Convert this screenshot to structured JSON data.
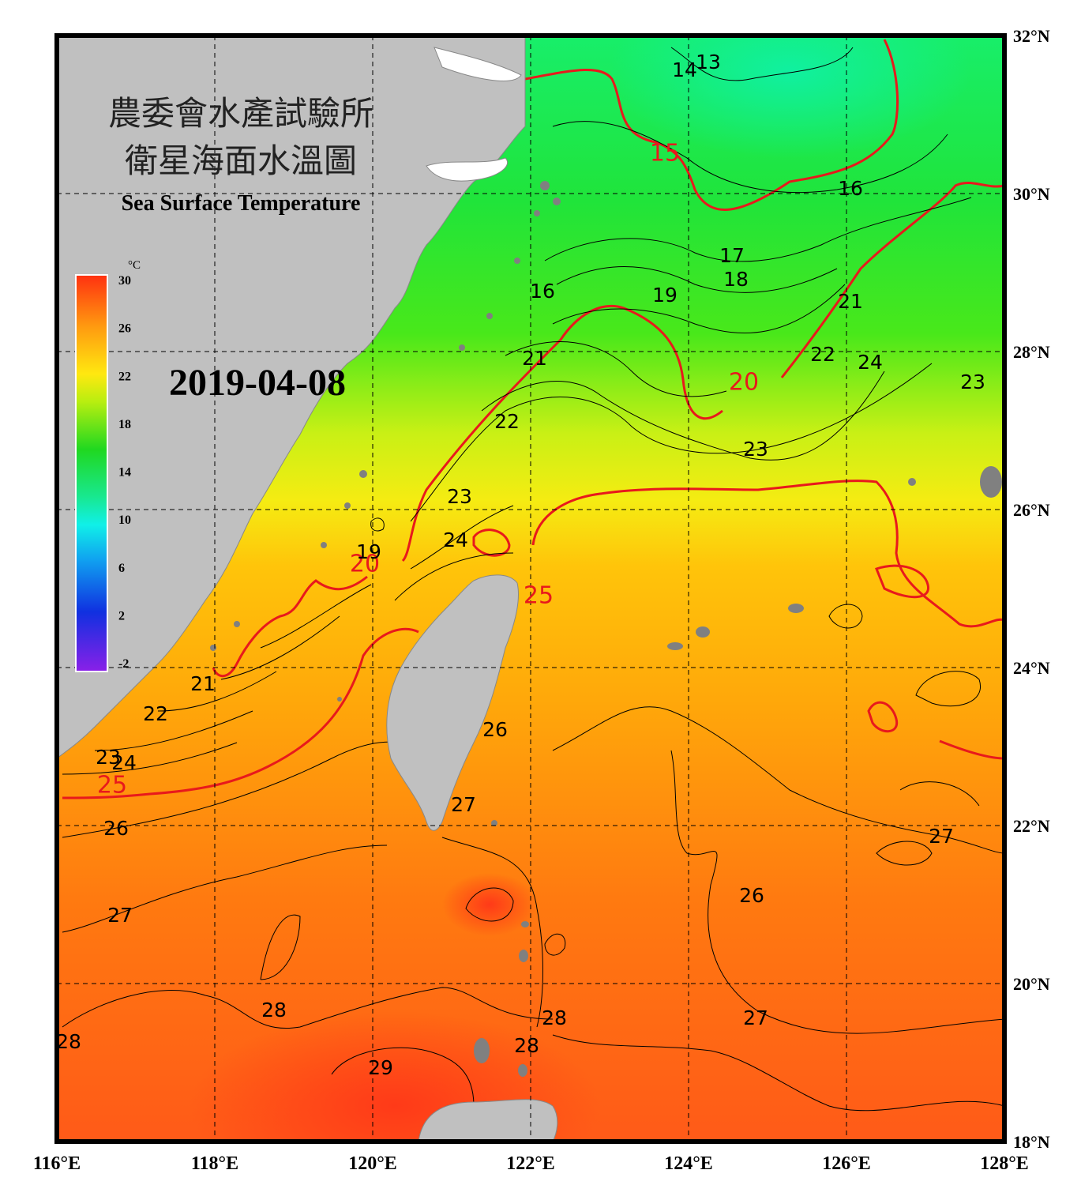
{
  "title": {
    "line1": "農委會水產試驗所",
    "line2": "衛星海面水溫圖",
    "line3": "Sea Surface Temperature"
  },
  "date": "2019-04-08",
  "colorbar": {
    "unit": "°C",
    "ticks": [
      "30",
      "26",
      "22",
      "18",
      "14",
      "10",
      "6",
      "2",
      "-2"
    ],
    "range": [
      -2,
      30
    ]
  },
  "axes": {
    "lon_labels": [
      "116°E",
      "118°E",
      "120°E",
      "122°E",
      "124°E",
      "126°E",
      "128°E"
    ],
    "lat_labels": [
      "32°N",
      "30°N",
      "28°N",
      "26°N",
      "24°N",
      "22°N",
      "20°N",
      "18°N"
    ],
    "lon_range": [
      116,
      128
    ],
    "lat_range": [
      18,
      32
    ]
  },
  "colors": {
    "frame": "#000000",
    "land": "#c0c0c0",
    "isotherm_major": "#e8191c",
    "isotherm_minor": "#000000",
    "grid": "#000000"
  },
  "contour_labels": {
    "major": [
      {
        "text": "15",
        "lon": 123.7,
        "lat": 30.5
      },
      {
        "text": "20",
        "lon": 124.7,
        "lat": 27.6
      },
      {
        "text": "20",
        "lon": 119.9,
        "lat": 25.3
      },
      {
        "text": "25",
        "lon": 122.1,
        "lat": 24.9
      },
      {
        "text": "25",
        "lon": 116.7,
        "lat": 22.5
      }
    ],
    "minor": [
      {
        "text": "13",
        "lon": 124.25,
        "lat": 31.65
      },
      {
        "text": "14",
        "lon": 123.95,
        "lat": 31.55
      },
      {
        "text": "16",
        "lon": 126.05,
        "lat": 30.05
      },
      {
        "text": "17",
        "lon": 124.55,
        "lat": 29.2
      },
      {
        "text": "18",
        "lon": 124.6,
        "lat": 28.9
      },
      {
        "text": "19",
        "lon": 123.7,
        "lat": 28.7
      },
      {
        "text": "16",
        "lon": 122.15,
        "lat": 28.75
      },
      {
        "text": "21",
        "lon": 126.05,
        "lat": 28.62
      },
      {
        "text": "21",
        "lon": 122.05,
        "lat": 27.9
      },
      {
        "text": "22",
        "lon": 125.7,
        "lat": 27.95
      },
      {
        "text": "24",
        "lon": 126.3,
        "lat": 27.85
      },
      {
        "text": "23",
        "lon": 127.6,
        "lat": 27.6
      },
      {
        "text": "22",
        "lon": 121.7,
        "lat": 27.1
      },
      {
        "text": "23",
        "lon": 124.85,
        "lat": 26.75
      },
      {
        "text": "23",
        "lon": 121.1,
        "lat": 26.15
      },
      {
        "text": "24",
        "lon": 121.05,
        "lat": 25.6
      },
      {
        "text": "19",
        "lon": 119.95,
        "lat": 25.45
      },
      {
        "text": "21",
        "lon": 117.85,
        "lat": 23.78
      },
      {
        "text": "22",
        "lon": 117.25,
        "lat": 23.4
      },
      {
        "text": "23",
        "lon": 116.65,
        "lat": 22.85
      },
      {
        "text": "24",
        "lon": 116.85,
        "lat": 22.78
      },
      {
        "text": "26",
        "lon": 121.55,
        "lat": 23.2
      },
      {
        "text": "26",
        "lon": 116.75,
        "lat": 21.95
      },
      {
        "text": "27",
        "lon": 121.15,
        "lat": 22.25
      },
      {
        "text": "27",
        "lon": 127.2,
        "lat": 21.85
      },
      {
        "text": "26",
        "lon": 124.8,
        "lat": 21.1
      },
      {
        "text": "27",
        "lon": 116.8,
        "lat": 20.85
      },
      {
        "text": "28",
        "lon": 118.75,
        "lat": 19.65
      },
      {
        "text": "28",
        "lon": 122.3,
        "lat": 19.55
      },
      {
        "text": "28",
        "lon": 121.95,
        "lat": 19.2
      },
      {
        "text": "27",
        "lon": 124.85,
        "lat": 19.55
      },
      {
        "text": "29",
        "lon": 120.1,
        "lat": 18.92
      },
      {
        "text": "28",
        "lon": 116.15,
        "lat": 19.25
      }
    ]
  }
}
